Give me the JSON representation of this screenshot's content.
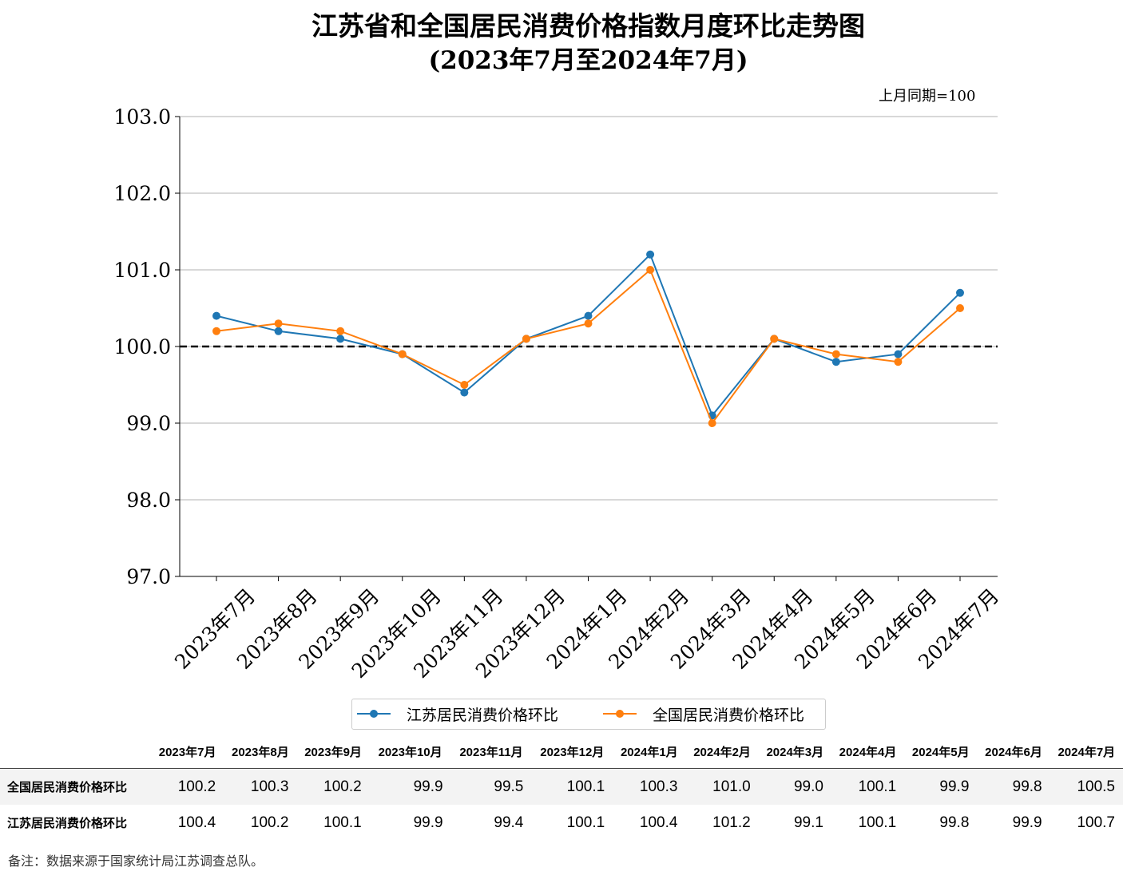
{
  "title": "江苏省和全国居民消费价格指数月度环比走势图",
  "subtitle": "(2023年7月至2024年7月)",
  "base_note": "上月同期=100",
  "footnote": "备注：数据来源于国家统计局江苏调查总队。",
  "colors": {
    "jiangsu": "#1f77b4",
    "national": "#ff7f0e",
    "reference": "#000000",
    "grid": "#b0b0b0"
  },
  "chart_data": {
    "type": "line",
    "categories": [
      "2023年7月",
      "2023年8月",
      "2023年9月",
      "2023年10月",
      "2023年11月",
      "2023年12月",
      "2024年1月",
      "2024年2月",
      "2024年3月",
      "2024年4月",
      "2024年5月",
      "2024年6月",
      "2024年7月"
    ],
    "series": [
      {
        "name": "江苏居民消费价格环比",
        "color": "#1f77b4",
        "values": [
          100.4,
          100.2,
          100.1,
          99.9,
          99.4,
          100.1,
          100.4,
          101.2,
          99.1,
          100.1,
          99.8,
          99.9,
          100.7
        ]
      },
      {
        "name": "全国居民消费价格环比",
        "color": "#ff7f0e",
        "values": [
          100.2,
          100.3,
          100.2,
          99.9,
          99.5,
          100.1,
          100.3,
          101.0,
          99.0,
          100.1,
          99.9,
          99.8,
          100.5
        ]
      }
    ],
    "ylim": [
      97.0,
      103.0
    ],
    "yticks": [
      "97.0",
      "98.0",
      "99.0",
      "100.0",
      "101.0",
      "102.0",
      "103.0"
    ],
    "reference_line": 100.0,
    "grid": "horizontal",
    "legend_position": "bottom"
  },
  "table": {
    "headers": [
      "2023年7月",
      "2023年8月",
      "2023年9月",
      "2023年10月",
      "2023年11月",
      "2023年12月",
      "2024年1月",
      "2024年2月",
      "2024年3月",
      "2024年4月",
      "2024年5月",
      "2024年6月",
      "2024年7月"
    ],
    "rows": [
      {
        "label": "全国居民消费价格环比",
        "cells": [
          "100.2",
          "100.3",
          "100.2",
          "99.9",
          "99.5",
          "100.1",
          "100.3",
          "101.0",
          "99.0",
          "100.1",
          "99.9",
          "99.8",
          "100.5"
        ]
      },
      {
        "label": "江苏居民消费价格环比",
        "cells": [
          "100.4",
          "100.2",
          "100.1",
          "99.9",
          "99.4",
          "100.1",
          "100.4",
          "101.2",
          "99.1",
          "100.1",
          "99.8",
          "99.9",
          "100.7"
        ]
      }
    ]
  }
}
